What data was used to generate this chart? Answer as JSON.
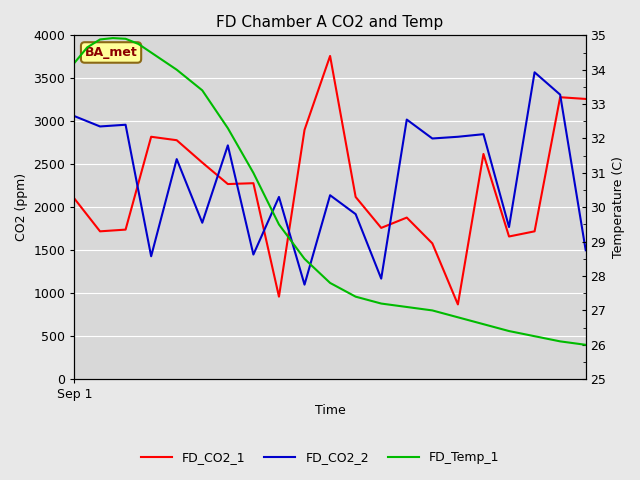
{
  "title": "FD Chamber A CO2 and Temp",
  "xlabel": "Time",
  "ylabel_left": "CO2 (ppm)",
  "ylabel_right": "Temperature (C)",
  "x_tick_label": "Sep 1",
  "annotation_text": "BA_met",
  "annotation_facecolor": "#ffff99",
  "annotation_edgecolor": "#8B6914",
  "annotation_textcolor": "#8B0000",
  "ylim_left": [
    0,
    4000
  ],
  "ylim_right": [
    25.0,
    35.0
  ],
  "yticks_left": [
    0,
    500,
    1000,
    1500,
    2000,
    2500,
    3000,
    3500,
    4000
  ],
  "yticks_right": [
    25.0,
    26.0,
    27.0,
    28.0,
    29.0,
    30.0,
    31.0,
    32.0,
    33.0,
    34.0,
    35.0
  ],
  "outer_bg_color": "#e8e8e8",
  "plot_bg_color": "#d8d8d8",
  "grid_color": "#ffffff",
  "fd_co2_1_color": "#ff0000",
  "fd_co2_2_color": "#0000cc",
  "fd_temp_1_color": "#00bb00",
  "fd_co2_1_x": [
    0,
    1,
    2,
    3,
    4,
    5,
    6,
    7,
    8,
    9,
    10,
    11,
    12,
    13,
    14,
    15,
    16,
    17,
    18,
    19,
    20
  ],
  "fd_co2_1_y": [
    2100,
    1720,
    1740,
    2820,
    2780,
    2520,
    2270,
    2280,
    960,
    2900,
    3760,
    2120,
    1760,
    1880,
    1580,
    870,
    2620,
    1660,
    1720,
    3280,
    3260
  ],
  "fd_co2_2_x": [
    0,
    1,
    2,
    3,
    4,
    5,
    6,
    7,
    8,
    9,
    10,
    11,
    12,
    13,
    14,
    15,
    16,
    17,
    18,
    19,
    20
  ],
  "fd_co2_2_y": [
    3060,
    2940,
    2960,
    1430,
    2560,
    1820,
    2720,
    1450,
    2120,
    1100,
    2140,
    1920,
    1170,
    3020,
    2800,
    2820,
    2850,
    1770,
    3570,
    3310,
    1500
  ],
  "fd_temp_1_x": [
    0,
    0.5,
    1,
    1.5,
    2,
    2.5,
    3,
    3.5,
    4,
    5,
    6,
    7,
    8,
    9,
    10,
    11,
    12,
    13,
    14,
    15,
    16,
    17,
    18,
    19,
    20
  ],
  "fd_temp_1_y": [
    34.2,
    34.65,
    34.88,
    34.92,
    34.9,
    34.75,
    34.5,
    34.25,
    34.0,
    33.4,
    32.3,
    31.0,
    29.5,
    28.5,
    27.8,
    27.4,
    27.2,
    27.1,
    27.0,
    26.8,
    26.6,
    26.4,
    26.25,
    26.1,
    26.0
  ],
  "legend_labels": [
    "FD_CO2_1",
    "FD_CO2_2",
    "FD_Temp_1"
  ],
  "linewidth": 1.5
}
